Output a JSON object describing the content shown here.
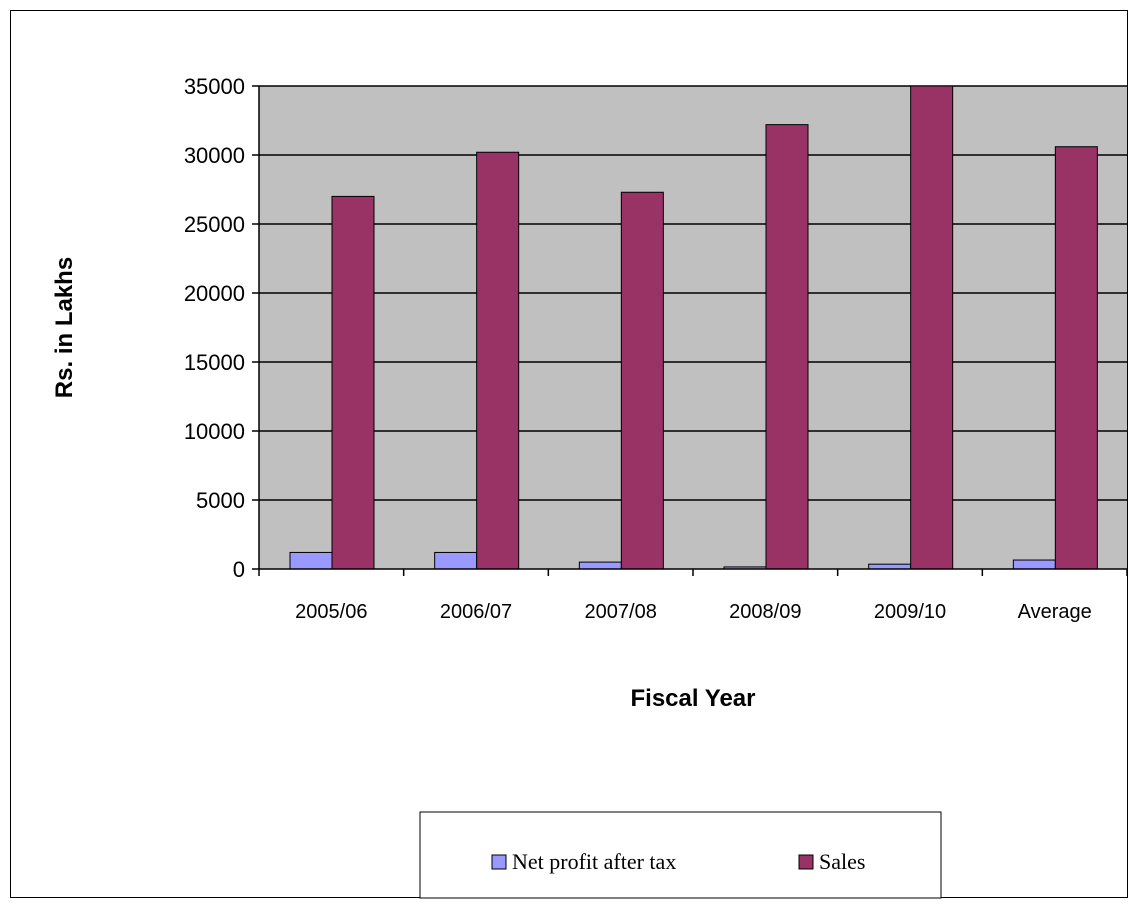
{
  "chart_data": {
    "type": "bar",
    "title": "",
    "xlabel": "Fiscal Year",
    "ylabel": "Rs. in Lakhs",
    "categories": [
      "2005/06",
      "2006/07",
      "2007/08",
      "2008/09",
      "2009/10",
      "Average"
    ],
    "series": [
      {
        "name": "Net profit after tax",
        "values": [
          1200,
          1200,
          500,
          150,
          350,
          650
        ]
      },
      {
        "name": "Sales",
        "values": [
          27000,
          30200,
          27300,
          32200,
          35000,
          30600
        ]
      }
    ],
    "ylim": [
      0,
      35000
    ],
    "yticks": [
      0,
      5000,
      10000,
      15000,
      20000,
      25000,
      30000,
      35000
    ],
    "grid": true,
    "legend_position": "bottom",
    "colors": {
      "Net profit after tax": "#9999ff",
      "Sales": "#993366",
      "plot_background": "#c0c0c0"
    }
  }
}
